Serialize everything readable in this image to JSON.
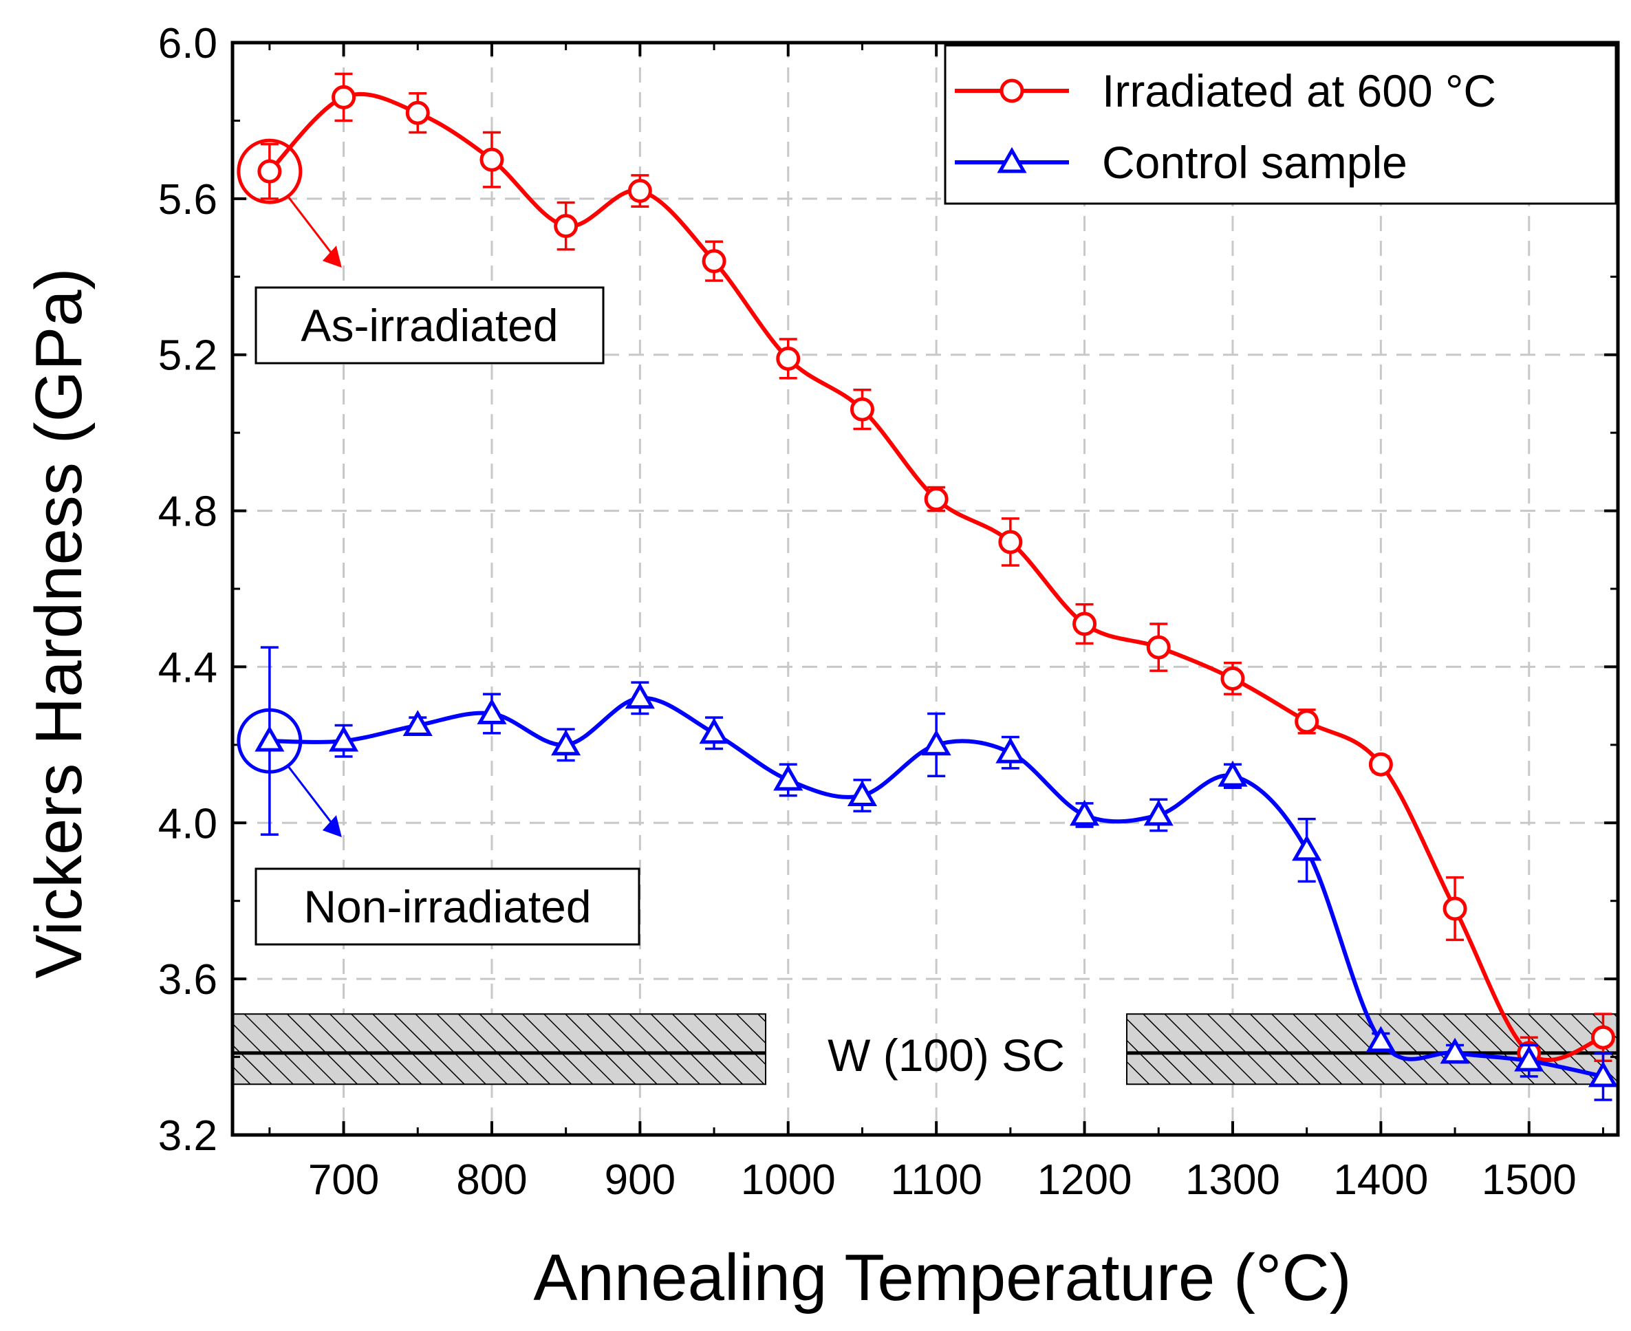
{
  "chart_data": {
    "type": "line",
    "xlabel": "Annealing Temperature (°C)",
    "ylabel": "Vickers Hardness (GPa)",
    "xlim": [
      625,
      1560
    ],
    "ylim": [
      3.2,
      6.0
    ],
    "xticks": [
      "700",
      "800",
      "900",
      "1000",
      "1100",
      "1200",
      "1300",
      "1400",
      "1500"
    ],
    "yticks": [
      "3.2",
      "3.6",
      "4.0",
      "4.4",
      "4.8",
      "5.2",
      "5.6",
      "6.0"
    ],
    "grid": true,
    "legend_position": "top-right",
    "series": [
      {
        "name": "Irradiated at 600 °C",
        "color": "#ff0000",
        "marker": "circle",
        "x": [
          650,
          700,
          750,
          800,
          850,
          900,
          950,
          1000,
          1050,
          1100,
          1150,
          1200,
          1250,
          1300,
          1350,
          1400,
          1450,
          1500,
          1550
        ],
        "y": [
          5.67,
          5.86,
          5.82,
          5.7,
          5.53,
          5.62,
          5.44,
          5.19,
          5.06,
          4.83,
          4.72,
          4.51,
          4.45,
          4.37,
          4.26,
          4.15,
          3.78,
          3.41,
          3.45
        ],
        "err": [
          0.07,
          0.06,
          0.05,
          0.07,
          0.06,
          0.04,
          0.05,
          0.05,
          0.05,
          0.03,
          0.06,
          0.05,
          0.06,
          0.04,
          0.03,
          0.02,
          0.08,
          0.04,
          0.06
        ]
      },
      {
        "name": "Control sample",
        "color": "#0000ff",
        "marker": "triangle",
        "x": [
          650,
          700,
          750,
          800,
          850,
          900,
          950,
          1000,
          1050,
          1100,
          1150,
          1200,
          1250,
          1300,
          1350,
          1400,
          1450,
          1500,
          1550
        ],
        "y": [
          4.21,
          4.21,
          4.25,
          4.28,
          4.2,
          4.32,
          4.23,
          4.11,
          4.07,
          4.2,
          4.18,
          4.02,
          4.02,
          4.12,
          3.93,
          3.44,
          3.41,
          3.39,
          3.35
        ],
        "err": [
          0.24,
          0.04,
          0.02,
          0.05,
          0.04,
          0.04,
          0.04,
          0.04,
          0.04,
          0.08,
          0.04,
          0.03,
          0.04,
          0.03,
          0.08,
          0.02,
          0.02,
          0.04,
          0.06
        ]
      }
    ],
    "reference_band": {
      "label": "W (100) SC",
      "center": 3.41,
      "lower": 3.33,
      "upper": 3.51
    },
    "annotations": [
      {
        "text": "As-irradiated",
        "x": 650,
        "y": 5.67
      },
      {
        "text": "Non-irradiated",
        "x": 650,
        "y": 4.21
      }
    ]
  }
}
